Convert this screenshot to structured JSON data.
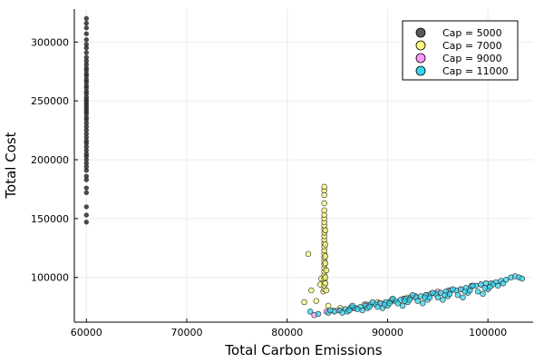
{
  "chart_data": {
    "type": "scatter",
    "title": "",
    "xlabel": "Total Carbon Emissions",
    "ylabel": "Total Cost",
    "xlim": [
      58800,
      104500
    ],
    "ylim": [
      62000,
      328000
    ],
    "x_ticks": [
      60000,
      70000,
      80000,
      90000,
      100000
    ],
    "y_ticks": [
      100000,
      150000,
      200000,
      250000,
      300000
    ],
    "grid": true,
    "legend_position": "top-right",
    "series": [
      {
        "name": "Cap = 5000",
        "color": "#4d4d4d",
        "marker": "circle-dense",
        "points": [
          [
            60000,
            147000
          ],
          [
            60000,
            153000
          ],
          [
            60000,
            160000
          ],
          [
            60000,
            172000
          ],
          [
            60000,
            176000
          ],
          [
            60000,
            183000
          ],
          [
            60000,
            186000
          ],
          [
            60000,
            191000
          ],
          [
            60000,
            194000
          ],
          [
            60000,
            197000
          ],
          [
            60000,
            200000
          ],
          [
            60000,
            203000
          ],
          [
            60000,
            205000
          ],
          [
            60000,
            208000
          ],
          [
            60000,
            211000
          ],
          [
            60000,
            214000
          ],
          [
            60000,
            216000
          ],
          [
            60000,
            219000
          ],
          [
            60000,
            222000
          ],
          [
            60000,
            225000
          ],
          [
            60000,
            228000
          ],
          [
            60000,
            231000
          ],
          [
            60000,
            234000
          ],
          [
            60000,
            236000
          ],
          [
            60000,
            239000
          ],
          [
            60000,
            241000
          ],
          [
            60000,
            243000
          ],
          [
            60000,
            245000
          ],
          [
            60000,
            247000
          ],
          [
            60000,
            249000
          ],
          [
            60000,
            251000
          ],
          [
            60000,
            253000
          ],
          [
            60000,
            256000
          ],
          [
            60000,
            258000
          ],
          [
            60000,
            261000
          ],
          [
            60000,
            263000
          ],
          [
            60000,
            266000
          ],
          [
            60000,
            268000
          ],
          [
            60000,
            271000
          ],
          [
            60000,
            273000
          ],
          [
            60000,
            276000
          ],
          [
            60000,
            278000
          ],
          [
            60000,
            281000
          ],
          [
            60000,
            284000
          ],
          [
            60000,
            287000
          ],
          [
            60000,
            291000
          ],
          [
            60000,
            295000
          ],
          [
            60000,
            298000
          ],
          [
            60000,
            302000
          ],
          [
            60000,
            307000
          ],
          [
            60000,
            312000
          ],
          [
            60000,
            316000
          ],
          [
            60000,
            320000
          ]
        ]
      },
      {
        "name": "Cap = 7000",
        "color": "#ffff80",
        "marker": "circle",
        "points": [
          [
            81700,
            79000
          ],
          [
            82100,
            120000
          ],
          [
            82400,
            89000
          ],
          [
            82900,
            80000
          ],
          [
            83300,
            94000
          ],
          [
            83600,
            88000
          ],
          [
            83400,
            99000
          ],
          [
            83700,
            90000
          ],
          [
            83700,
            93000
          ],
          [
            83700,
            96000
          ],
          [
            83700,
            99000
          ],
          [
            83700,
            102000
          ],
          [
            83700,
            105000
          ],
          [
            83700,
            108000
          ],
          [
            83700,
            111000
          ],
          [
            83700,
            114000
          ],
          [
            83700,
            117000
          ],
          [
            83700,
            120000
          ],
          [
            83700,
            123000
          ],
          [
            83700,
            126000
          ],
          [
            83700,
            129000
          ],
          [
            83700,
            132000
          ],
          [
            83700,
            135000
          ],
          [
            83700,
            138000
          ],
          [
            83700,
            141000
          ],
          [
            83700,
            144000
          ],
          [
            83700,
            147000
          ],
          [
            83700,
            150000
          ],
          [
            83700,
            153000
          ],
          [
            83700,
            157000
          ],
          [
            83700,
            163000
          ],
          [
            83700,
            170000
          ],
          [
            83700,
            174000
          ],
          [
            83700,
            177000
          ],
          [
            83800,
            100000
          ],
          [
            83800,
            112000
          ],
          [
            83800,
            128000
          ],
          [
            83800,
            140000
          ],
          [
            83800,
            118000
          ],
          [
            83800,
            95000
          ],
          [
            83900,
            89000
          ],
          [
            83900,
            106000
          ],
          [
            84100,
            76000
          ],
          [
            84600,
            72000
          ],
          [
            85300,
            74000
          ],
          [
            86400,
            75000
          ],
          [
            87700,
            77000
          ],
          [
            89000,
            79000
          ],
          [
            90500,
            81000
          ],
          [
            92000,
            83000
          ]
        ]
      },
      {
        "name": "Cap = 9000",
        "color": "#ff99ff",
        "marker": "circle",
        "points": [
          [
            82700,
            68000
          ],
          [
            83900,
            71000
          ],
          [
            85100,
            72000
          ],
          [
            86600,
            74000
          ],
          [
            87900,
            77000
          ],
          [
            89200,
            78000
          ],
          [
            90400,
            80000
          ],
          [
            91600,
            82000
          ],
          [
            92800,
            84000
          ],
          [
            93900,
            85000
          ],
          [
            95000,
            88000
          ],
          [
            96100,
            89000
          ],
          [
            97300,
            90000
          ],
          [
            98400,
            93000
          ],
          [
            99300,
            94000
          ]
        ]
      },
      {
        "name": "Cap = 11000",
        "color": "#33d6ef",
        "marker": "circle",
        "points": [
          [
            82300,
            71000
          ],
          [
            83100,
            69000
          ],
          [
            84100,
            70000
          ],
          [
            84700,
            71000
          ],
          [
            85300,
            72000
          ],
          [
            85800,
            73000
          ],
          [
            86300,
            74000
          ],
          [
            86800,
            74000
          ],
          [
            87300,
            75000
          ],
          [
            87800,
            76000
          ],
          [
            88300,
            77000
          ],
          [
            88800,
            77000
          ],
          [
            89300,
            78000
          ],
          [
            89800,
            79000
          ],
          [
            90300,
            80000
          ],
          [
            90800,
            80000
          ],
          [
            91300,
            81000
          ],
          [
            91800,
            82000
          ],
          [
            92300,
            83000
          ],
          [
            92800,
            83000
          ],
          [
            93300,
            84000
          ],
          [
            93800,
            85000
          ],
          [
            94300,
            86000
          ],
          [
            94800,
            86000
          ],
          [
            95300,
            87000
          ],
          [
            95800,
            88000
          ],
          [
            96300,
            89000
          ],
          [
            96800,
            89000
          ],
          [
            97300,
            90000
          ],
          [
            97800,
            91000
          ],
          [
            98300,
            92000
          ],
          [
            98800,
            93000
          ],
          [
            99300,
            94000
          ],
          [
            99800,
            95000
          ],
          [
            100300,
            95000
          ],
          [
            100800,
            96000
          ],
          [
            101300,
            97000
          ],
          [
            101800,
            98000
          ],
          [
            102300,
            100000
          ],
          [
            102700,
            101000
          ],
          [
            103100,
            100000
          ],
          [
            103400,
            99000
          ],
          [
            86000,
            71000
          ],
          [
            87000,
            73000
          ],
          [
            88000,
            74000
          ],
          [
            89000,
            75000
          ],
          [
            90000,
            76000
          ],
          [
            91000,
            78000
          ],
          [
            92000,
            79000
          ],
          [
            93000,
            80000
          ],
          [
            94000,
            81000
          ],
          [
            95000,
            83000
          ],
          [
            96000,
            84000
          ],
          [
            97000,
            85000
          ],
          [
            98000,
            87000
          ],
          [
            99000,
            88000
          ],
          [
            100000,
            90000
          ],
          [
            86500,
            76000
          ],
          [
            88500,
            79000
          ],
          [
            90500,
            82000
          ],
          [
            92500,
            85000
          ],
          [
            94500,
            87000
          ],
          [
            96500,
            90000
          ],
          [
            98500,
            93000
          ],
          [
            100500,
            94000
          ],
          [
            85500,
            70000
          ],
          [
            87500,
            72000
          ],
          [
            89500,
            74000
          ],
          [
            91500,
            76000
          ],
          [
            93500,
            78000
          ],
          [
            95500,
            81000
          ],
          [
            97500,
            83000
          ],
          [
            99500,
            86000
          ],
          [
            101000,
            93000
          ],
          [
            84300,
            72000
          ],
          [
            86200,
            72000
          ],
          [
            88200,
            75000
          ],
          [
            90200,
            78000
          ],
          [
            92200,
            81000
          ],
          [
            94200,
            83000
          ],
          [
            96200,
            86000
          ],
          [
            98200,
            89000
          ],
          [
            100200,
            92000
          ],
          [
            89700,
            77000
          ],
          [
            91700,
            80000
          ],
          [
            93700,
            83000
          ],
          [
            95700,
            85000
          ],
          [
            97700,
            88000
          ],
          [
            99700,
            91000
          ],
          [
            101500,
            95000
          ]
        ]
      }
    ]
  }
}
